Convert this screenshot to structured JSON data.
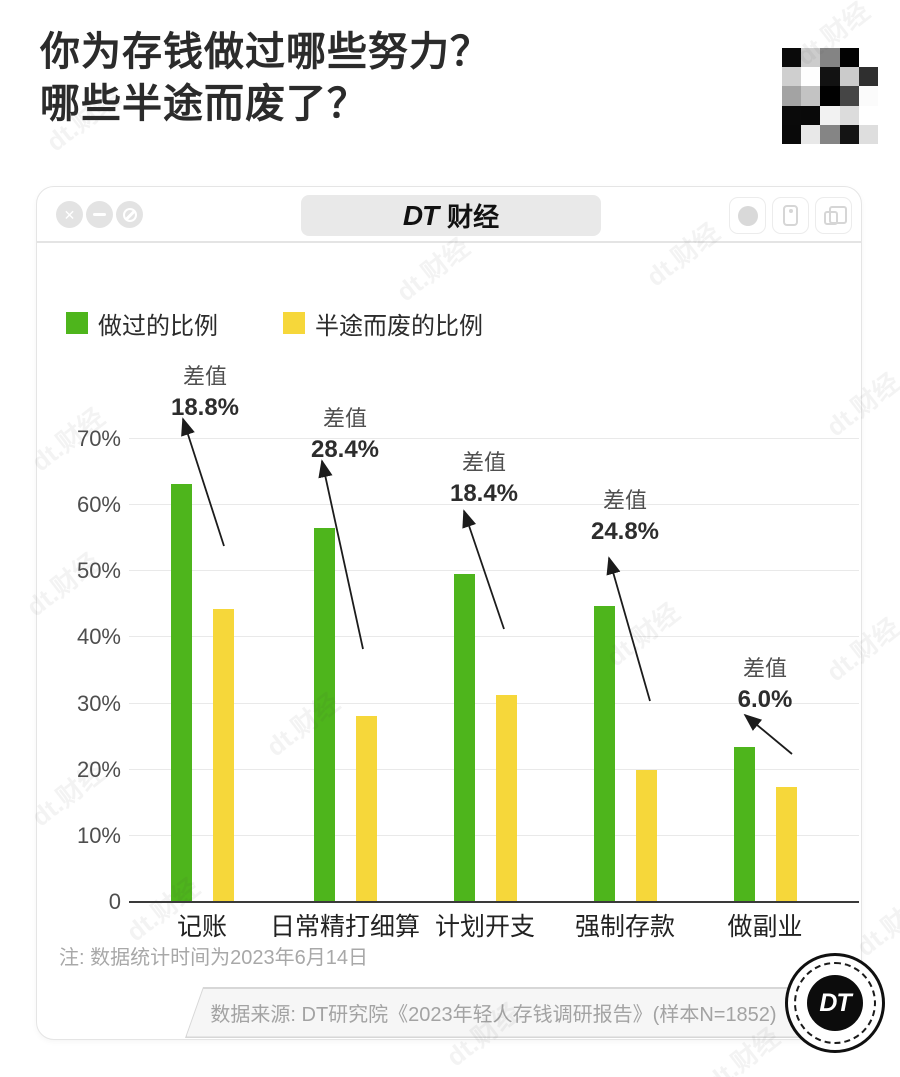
{
  "page": {
    "title_line1": "你为存钱做过哪些努力？",
    "title_line2": "哪些半途而废了？",
    "watermark_text": "dt.财经"
  },
  "window": {
    "titlebar": {
      "brand_bold": "DT",
      "brand_rest": "财经",
      "left_controls": [
        "close",
        "minimize",
        "block"
      ],
      "right_controls": [
        "record",
        "screenshot",
        "copy"
      ]
    },
    "note": "注: 数据统计时间为2023年6月14日",
    "source": "数据来源: DT研究院《2023年轻人存钱调研报告》(样本N=1852)",
    "logo_text": "DT"
  },
  "legend": [
    {
      "label": "做过的比例",
      "color": "#4eb51c"
    },
    {
      "label": "半途而废的比例",
      "color": "#f6d73a"
    }
  ],
  "chart_data": {
    "type": "bar",
    "title": "你为存钱做过哪些努力？哪些半途而废了？",
    "categories": [
      "记账",
      "日常精打细算",
      "计划开支",
      "强制存款",
      "做副业"
    ],
    "series": [
      {
        "name": "做过的比例",
        "color": "#4eb51c",
        "values": [
          63.0,
          56.4,
          49.5,
          44.6,
          23.3
        ]
      },
      {
        "name": "半途而废的比例",
        "color": "#f6d73a",
        "values": [
          44.2,
          28.0,
          31.1,
          19.8,
          17.3
        ]
      }
    ],
    "annotations": [
      {
        "label": "差值",
        "value": "18.8%"
      },
      {
        "label": "差值",
        "value": "28.4%"
      },
      {
        "label": "差值",
        "value": "18.4%"
      },
      {
        "label": "差值",
        "value": "24.8%"
      },
      {
        "label": "差值",
        "value": "6.0%"
      }
    ],
    "y_ticks": [
      {
        "label": "70%",
        "value": 70
      },
      {
        "label": "60%",
        "value": 60
      },
      {
        "label": "50%",
        "value": 50
      },
      {
        "label": "40%",
        "value": 40
      },
      {
        "label": "30%",
        "value": 30
      },
      {
        "label": "20%",
        "value": 20
      },
      {
        "label": "10%",
        "value": 10
      },
      {
        "label": "0",
        "value": 0
      }
    ],
    "ylim": [
      0,
      70
    ],
    "grid": true,
    "legend_position": "top-left",
    "xlabel": "",
    "ylabel": ""
  },
  "mosaic": {
    "rows": 5,
    "cols": 5,
    "colors": [
      "#0a0a0a",
      "#cccccc",
      "#848484",
      "#030303",
      "#ffffff",
      "#cfcfcf",
      "#fefefe",
      "#121212",
      "#cbcbcb",
      "#2f2f2f",
      "#a3a3a3",
      "#c3c3c3",
      "#010101",
      "#454545",
      "#fbfbfb",
      "#0a0a0a",
      "#090909",
      "#f2f2f2",
      "#dcdcdc",
      "#ffffff",
      "#090909",
      "#e8e8e8",
      "#858585",
      "#141414",
      "#dedede"
    ]
  }
}
